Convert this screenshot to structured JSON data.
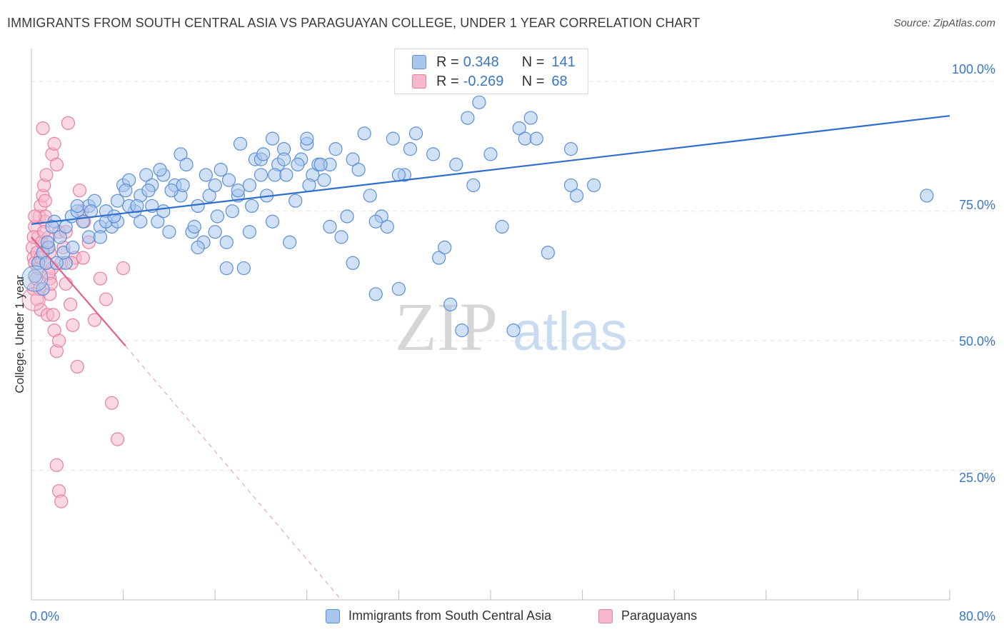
{
  "header": {
    "title": "IMMIGRANTS FROM SOUTH CENTRAL ASIA VS PARAGUAYAN COLLEGE, UNDER 1 YEAR CORRELATION CHART",
    "source": "Source: ZipAtlas.com"
  },
  "watermark": {
    "zip": "ZIP",
    "atlas": "atlas"
  },
  "legend_top": {
    "rows": [
      {
        "r_label": "R =",
        "r_value": "0.348",
        "n_label": "N =",
        "n_value": "141"
      },
      {
        "r_label": "R =",
        "r_value": "-0.269",
        "n_label": "N =",
        "n_value": "68"
      }
    ]
  },
  "legend_bottom": {
    "items": [
      {
        "label": "Immigrants from South Central Asia"
      },
      {
        "label": "Paraguayans"
      }
    ]
  },
  "colors": {
    "blue_fill": "#a9c7ec",
    "blue_stroke": "#5b8fd6",
    "blue_line": "#2f6fcb",
    "pink_fill": "#f6b8cc",
    "pink_stroke": "#e77fa1",
    "pink_line": "#e0638f",
    "tick_text": "#3a76c4",
    "grid": "#e3e3e3"
  },
  "chart_data": {
    "type": "scatter",
    "title": "IMMIGRANTS FROM SOUTH CENTRAL ASIA VS PARAGUAYAN COLLEGE, UNDER 1 YEAR CORRELATION CHART",
    "xlabel": "",
    "ylabel": "College, Under 1 year",
    "xlim": [
      0,
      80
    ],
    "ylim": [
      0,
      105
    ],
    "x_tick_labels": [
      "0.0%",
      "80.0%"
    ],
    "y_ticks": [
      25,
      50,
      75,
      100
    ],
    "y_tick_labels": [
      "25.0%",
      "50.0%",
      "75.0%",
      "100.0%"
    ],
    "grid": true,
    "legend_position": "top-center",
    "series": [
      {
        "name": "Immigrants from South Central Asia",
        "color": "#5b8fd6",
        "R": 0.348,
        "N": 141,
        "trend": {
          "x": [
            0,
            80
          ],
          "y": [
            72.5,
            93.4
          ],
          "style": "solid"
        },
        "points": [
          [
            0.3,
            62.5
          ],
          [
            0.6,
            65
          ],
          [
            1.0,
            67
          ],
          [
            1.3,
            65
          ],
          [
            1.5,
            68
          ],
          [
            1.0,
            60
          ],
          [
            2,
            73
          ],
          [
            2.5,
            70
          ],
          [
            3,
            72
          ],
          [
            3.5,
            74
          ],
          [
            3,
            65
          ],
          [
            4,
            75
          ],
          [
            4.5,
            73
          ],
          [
            5,
            76
          ],
          [
            5.5,
            77
          ],
          [
            6,
            72
          ],
          [
            6.5,
            75
          ],
          [
            7,
            72
          ],
          [
            7.5,
            77
          ],
          [
            8,
            80
          ],
          [
            8.5,
            81
          ],
          [
            9,
            75
          ],
          [
            9.5,
            78
          ],
          [
            10,
            82
          ],
          [
            10.5,
            80
          ],
          [
            11,
            73
          ],
          [
            11.5,
            82
          ],
          [
            12,
            71
          ],
          [
            12.5,
            80
          ],
          [
            13,
            86
          ],
          [
            13.5,
            84
          ],
          [
            14,
            71
          ],
          [
            14.5,
            76
          ],
          [
            15,
            69
          ],
          [
            15.5,
            78
          ],
          [
            16,
            80
          ],
          [
            16.5,
            83
          ],
          [
            17,
            69
          ],
          [
            17.5,
            75
          ],
          [
            18,
            78
          ],
          [
            18.5,
            64
          ],
          [
            19,
            71
          ],
          [
            19.5,
            85
          ],
          [
            20,
            82
          ],
          [
            20.5,
            78
          ],
          [
            21,
            73
          ],
          [
            21.5,
            84
          ],
          [
            22,
            87
          ],
          [
            22.5,
            69
          ],
          [
            23,
            77
          ],
          [
            23.5,
            85
          ],
          [
            24,
            88
          ],
          [
            24.5,
            82
          ],
          [
            25,
            84
          ],
          [
            25.5,
            81
          ],
          [
            26,
            72
          ],
          [
            26.5,
            87
          ],
          [
            27,
            70
          ],
          [
            27.5,
            74
          ],
          [
            28,
            85
          ],
          [
            28.5,
            83
          ],
          [
            29,
            90
          ],
          [
            29.5,
            78
          ],
          [
            30,
            59
          ],
          [
            30.5,
            74
          ],
          [
            31,
            72
          ],
          [
            31.5,
            89
          ],
          [
            32,
            60
          ],
          [
            32.5,
            82
          ],
          [
            33,
            87
          ],
          [
            33.5,
            90
          ],
          [
            35,
            86
          ],
          [
            35.5,
            66
          ],
          [
            36,
            68
          ],
          [
            36.5,
            57
          ],
          [
            37,
            84
          ],
          [
            37.5,
            52
          ],
          [
            38,
            93
          ],
          [
            38.5,
            80
          ],
          [
            39,
            96
          ],
          [
            40,
            86
          ],
          [
            41,
            72
          ],
          [
            42,
            52
          ],
          [
            42.5,
            91
          ],
          [
            43,
            89
          ],
          [
            43.5,
            93
          ],
          [
            44,
            89
          ],
          [
            45,
            67
          ],
          [
            47,
            80
          ],
          [
            47,
            87
          ],
          [
            47.5,
            78
          ],
          [
            49,
            80
          ],
          [
            5,
            70
          ],
          [
            6.5,
            73
          ],
          [
            7.5,
            73
          ],
          [
            8.5,
            76
          ],
          [
            9.5,
            73
          ],
          [
            10.5,
            76
          ],
          [
            11.5,
            75
          ],
          [
            13,
            78
          ],
          [
            14.5,
            68
          ],
          [
            16,
            71
          ],
          [
            17,
            64
          ],
          [
            18,
            79
          ],
          [
            19,
            80
          ],
          [
            20,
            85
          ],
          [
            21,
            89
          ],
          [
            22,
            85
          ],
          [
            24,
            89
          ],
          [
            26,
            84
          ],
          [
            28,
            65
          ],
          [
            30,
            73
          ],
          [
            32,
            82
          ],
          [
            2.2,
            65
          ],
          [
            2.8,
            67
          ],
          [
            1.8,
            72
          ],
          [
            4,
            76
          ],
          [
            1.4,
            69
          ],
          [
            3.6,
            68
          ],
          [
            5.2,
            75
          ],
          [
            6,
            70
          ],
          [
            7.2,
            74
          ],
          [
            8.2,
            79
          ],
          [
            9.2,
            76
          ],
          [
            10.2,
            79
          ],
          [
            11.2,
            83
          ],
          [
            12.2,
            79
          ],
          [
            13.2,
            80
          ],
          [
            14.2,
            72
          ],
          [
            15.2,
            82
          ],
          [
            16.2,
            74
          ],
          [
            17.2,
            81
          ],
          [
            18.2,
            88
          ],
          [
            19.2,
            76
          ],
          [
            20.2,
            86
          ],
          [
            21.2,
            82
          ],
          [
            22.2,
            82
          ],
          [
            23.2,
            84
          ],
          [
            24.2,
            80
          ],
          [
            25.2,
            84
          ],
          [
            78,
            78
          ]
        ]
      },
      {
        "name": "Paraguayans",
        "color": "#e77fa1",
        "R": -0.269,
        "N": 68,
        "trend": {
          "x": [
            0,
            8.2
          ],
          "y": [
            70,
            49
          ],
          "style": "solid"
        },
        "trend_dashed": {
          "x": [
            8.2,
            27
          ],
          "y": [
            49,
            0
          ],
          "style": "dashed"
        },
        "points": [
          [
            0.1,
            68
          ],
          [
            0.2,
            66
          ],
          [
            0.3,
            65
          ],
          [
            0.2,
            60
          ],
          [
            0.4,
            62
          ],
          [
            0.5,
            58
          ],
          [
            0.3,
            72
          ],
          [
            0.6,
            70
          ],
          [
            0.7,
            74
          ],
          [
            0.8,
            76
          ],
          [
            1.0,
            78
          ],
          [
            1.1,
            80
          ],
          [
            1.2,
            73
          ],
          [
            1.3,
            82
          ],
          [
            1.5,
            70
          ],
          [
            1.6,
            67
          ],
          [
            1.8,
            86
          ],
          [
            2.0,
            88
          ],
          [
            2.2,
            84
          ],
          [
            2.4,
            71
          ],
          [
            2.6,
            65
          ],
          [
            2.8,
            68
          ],
          [
            3.0,
            61
          ],
          [
            3.2,
            92
          ],
          [
            3.4,
            57
          ],
          [
            3.6,
            53
          ],
          [
            3.8,
            66
          ],
          [
            4.0,
            45
          ],
          [
            4.2,
            79
          ],
          [
            4.4,
            75
          ],
          [
            4.6,
            73
          ],
          [
            5.0,
            69
          ],
          [
            5.5,
            54
          ],
          [
            6,
            62
          ],
          [
            6.5,
            58
          ],
          [
            7,
            38
          ],
          [
            7.5,
            31
          ],
          [
            8,
            64
          ],
          [
            1.0,
            91
          ],
          [
            1.2,
            74
          ],
          [
            0.8,
            56
          ],
          [
            1.4,
            55
          ],
          [
            1.6,
            62
          ],
          [
            1.8,
            64
          ],
          [
            2.0,
            52
          ],
          [
            2.2,
            48
          ],
          [
            2.4,
            50
          ],
          [
            2.2,
            26
          ],
          [
            2.4,
            21
          ],
          [
            2.6,
            19
          ],
          [
            0.2,
            70
          ],
          [
            0.3,
            74
          ],
          [
            0.5,
            67
          ],
          [
            0.6,
            64
          ],
          [
            0.7,
            60
          ],
          [
            0.8,
            66
          ],
          [
            0.9,
            69
          ],
          [
            1.1,
            71
          ],
          [
            1.2,
            77
          ],
          [
            1.3,
            65
          ],
          [
            1.4,
            68
          ],
          [
            1.5,
            63
          ],
          [
            1.6,
            59
          ],
          [
            1.7,
            61
          ],
          [
            1.9,
            55
          ],
          [
            3.0,
            71
          ],
          [
            3.5,
            65
          ],
          [
            4.5,
            66
          ]
        ]
      }
    ]
  }
}
